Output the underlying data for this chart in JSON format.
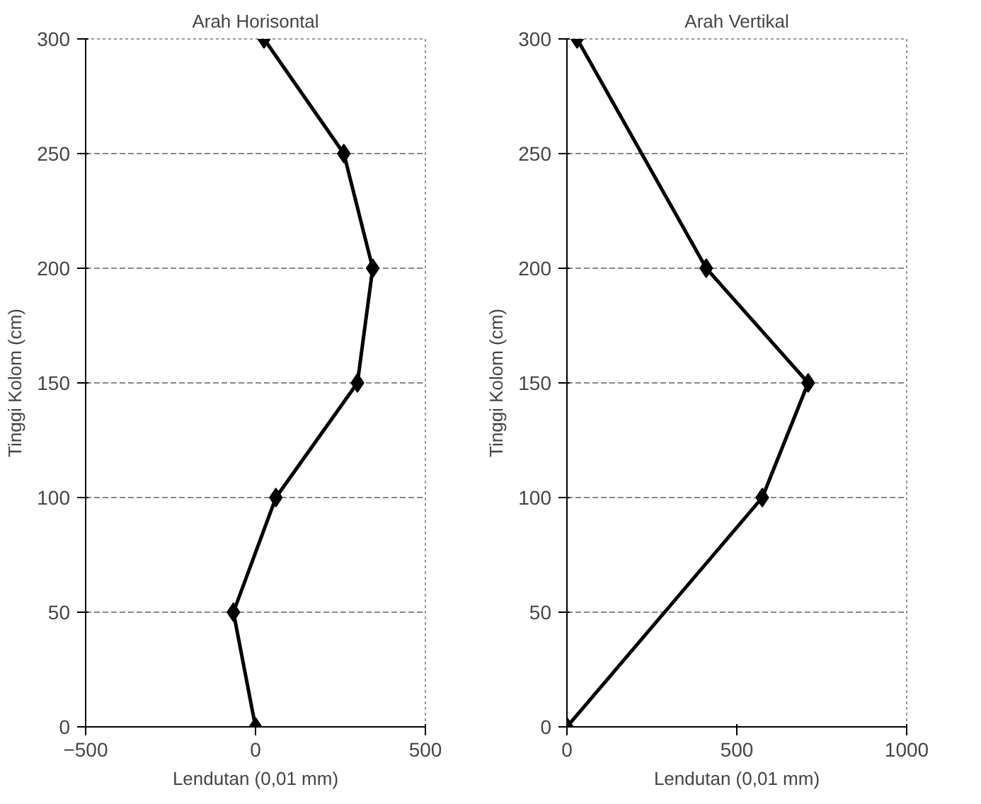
{
  "chart_data": [
    {
      "type": "line",
      "title": "Arah Horisontal",
      "xlabel": "Lendutan (0,01 mm)",
      "ylabel": "Tinggi Kolom (cm)",
      "series": [
        {
          "color": "#000000",
          "x": [
            0,
            -65,
            60,
            300,
            345,
            260,
            25
          ],
          "values": [
            0,
            50,
            100,
            150,
            200,
            250,
            300
          ]
        }
      ],
      "xlim": [
        -500,
        500
      ],
      "xticks": [
        -500,
        0,
        500
      ],
      "ylim": [
        0,
        300
      ],
      "yticks": [
        0,
        50,
        100,
        150,
        200,
        250,
        300
      ],
      "grid": "y",
      "marker": "diamond",
      "line_style": "solid"
    },
    {
      "type": "line",
      "title": "Arah Vertikal",
      "xlabel": "Lendutan (0,01 mm)",
      "ylabel": "Tinggi Kolom (cm)",
      "series": [
        {
          "color": "#000000",
          "x": [
            0,
            575,
            710,
            410,
            30
          ],
          "values": [
            0,
            100,
            150,
            200,
            300
          ]
        }
      ],
      "xlim": [
        0,
        1000
      ],
      "xticks": [
        0,
        500,
        1000
      ],
      "ylim": [
        0,
        300
      ],
      "yticks": [
        0,
        50,
        100,
        150,
        200,
        250,
        300
      ],
      "grid": "y",
      "marker": "diamond",
      "line_style": "solid"
    }
  ]
}
